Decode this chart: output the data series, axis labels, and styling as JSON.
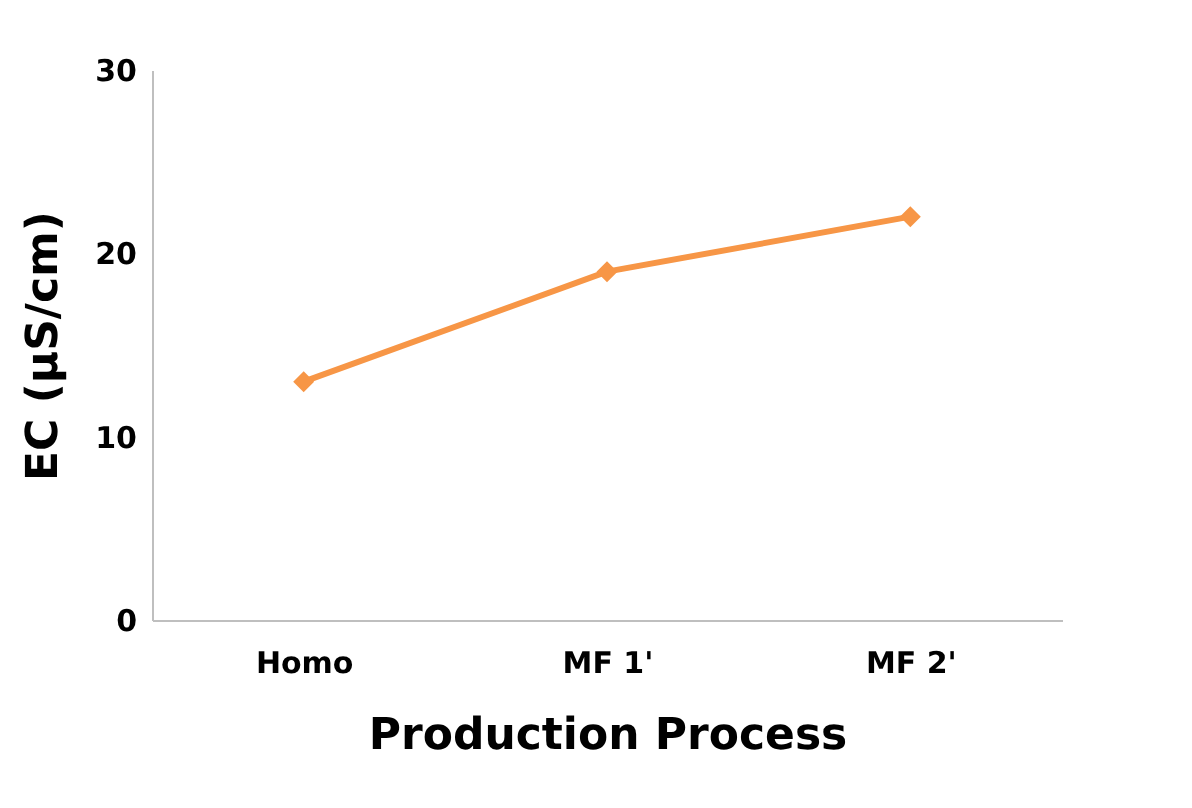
{
  "chart_data": {
    "type": "line",
    "categories": [
      "Homo",
      "MF 1'",
      "MF 2'"
    ],
    "series": [
      {
        "color": "#f79646",
        "values": [
          13,
          19,
          22
        ]
      }
    ],
    "xlabel": "Production Process",
    "ylabel": "EC (µS/cm)",
    "ylim": [
      0,
      30
    ],
    "yticks": [
      0,
      10,
      20,
      30
    ],
    "grid": false,
    "marker": "diamond",
    "line_style": "solid"
  }
}
